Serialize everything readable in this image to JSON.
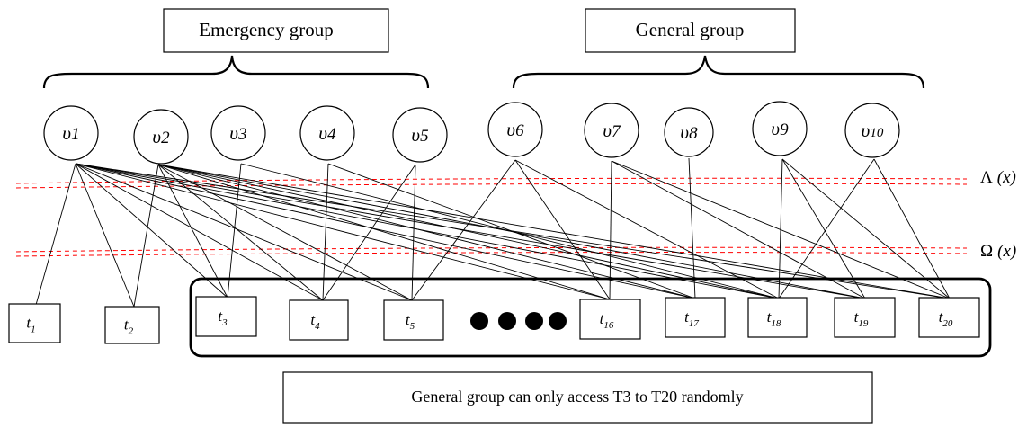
{
  "groups": {
    "emergency_label": "Emergency group",
    "general_label": "General group"
  },
  "users": [
    {
      "base": "υ",
      "sub": "1"
    },
    {
      "base": "υ",
      "sub": "2"
    },
    {
      "base": "υ",
      "sub": "3"
    },
    {
      "base": "υ",
      "sub": "4"
    },
    {
      "base": "υ",
      "sub": "5"
    },
    {
      "base": "υ",
      "sub": "6"
    },
    {
      "base": "υ",
      "sub": "7"
    },
    {
      "base": "υ",
      "sub": "8"
    },
    {
      "base": "υ",
      "sub": "9"
    },
    {
      "base": "υ",
      "sub": "10"
    }
  ],
  "tasks": [
    {
      "base": "t",
      "sub": "1"
    },
    {
      "base": "t",
      "sub": "2"
    },
    {
      "base": "t",
      "sub": "3"
    },
    {
      "base": "t",
      "sub": "4"
    },
    {
      "base": "t",
      "sub": "5"
    },
    {
      "base": "t",
      "sub": "16"
    },
    {
      "base": "t",
      "sub": "17"
    },
    {
      "base": "t",
      "sub": "18"
    },
    {
      "base": "t",
      "sub": "19"
    },
    {
      "base": "t",
      "sub": "20"
    }
  ],
  "thresholds": {
    "lambda_label": "Λ",
    "omega_label": "Ω",
    "arg_label": "(x)"
  },
  "edges": [
    [
      "1",
      "1"
    ],
    [
      "1",
      "2"
    ],
    [
      "1",
      "3"
    ],
    [
      "1",
      "4"
    ],
    [
      "1",
      "5"
    ],
    [
      "1",
      "16"
    ],
    [
      "1",
      "17"
    ],
    [
      "1",
      "18"
    ],
    [
      "1",
      "19"
    ],
    [
      "1",
      "20"
    ],
    [
      "2",
      "2"
    ],
    [
      "2",
      "3"
    ],
    [
      "2",
      "4"
    ],
    [
      "2",
      "5"
    ],
    [
      "2",
      "16"
    ],
    [
      "2",
      "17"
    ],
    [
      "2",
      "18"
    ],
    [
      "2",
      "19"
    ],
    [
      "2",
      "20"
    ],
    [
      "3",
      "3"
    ],
    [
      "3",
      "18"
    ],
    [
      "4",
      "4"
    ],
    [
      "4",
      "17"
    ],
    [
      "5",
      "4"
    ],
    [
      "5",
      "5"
    ],
    [
      "6",
      "5"
    ],
    [
      "6",
      "16"
    ],
    [
      "6",
      "18"
    ],
    [
      "7",
      "16"
    ],
    [
      "7",
      "19"
    ],
    [
      "7",
      "20"
    ],
    [
      "8",
      "17"
    ],
    [
      "9",
      "18"
    ],
    [
      "9",
      "19"
    ],
    [
      "9",
      "20"
    ],
    [
      "10",
      "18"
    ],
    [
      "10",
      "20"
    ]
  ],
  "footer_note": "General group can only access T3 to T20 randomly"
}
